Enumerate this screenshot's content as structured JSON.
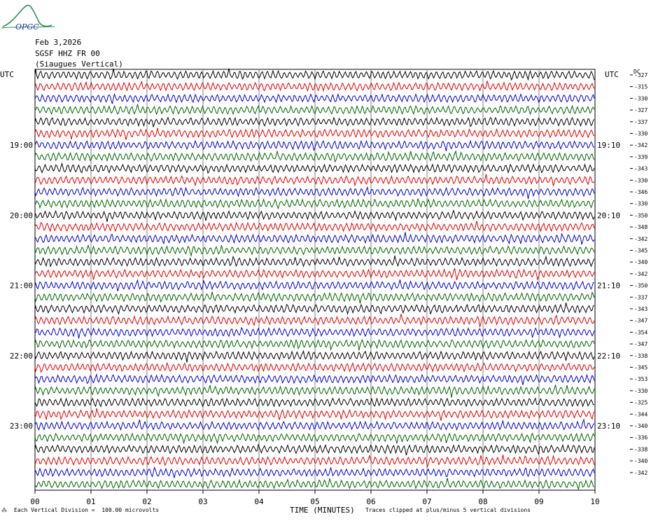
{
  "header": {
    "date": "Feb 3,2026",
    "station": "SGSF HHZ FR 00",
    "location": "(Siaugues Vertical)",
    "logo_text": "OPGC"
  },
  "utc_label_left": "UTC",
  "utc_label_right": "UTC",
  "dc_label": "DC",
  "footer": {
    "scale": "Each Vertical Division =  100.00 microvolts",
    "xlabel": "TIME (MINUTES)",
    "clip": "Traces clipped at plus/minus 5 vertical divisions"
  },
  "colors": {
    "trace_cycle": [
      "#000000",
      "#e00000",
      "#0000d0",
      "#006400"
    ],
    "grid": "#808080"
  },
  "chart_data": {
    "type": "line",
    "title": "Feb 3,2026 SGSF HHZ FR 00 (Siaugues Vertical)",
    "xlabel": "TIME (MINUTES)",
    "x_ticks": [
      "00",
      "01",
      "02",
      "03",
      "04",
      "05",
      "06",
      "07",
      "08",
      "09",
      "10"
    ],
    "xlim": [
      0,
      10
    ],
    "left_time_labels": [
      {
        "label": "19:00",
        "row": 6
      },
      {
        "label": "20:00",
        "row": 12
      },
      {
        "label": "21:00",
        "row": 18
      },
      {
        "label": "22:00",
        "row": 24
      },
      {
        "label": "23:00",
        "row": 30
      }
    ],
    "right_time_labels": [
      {
        "label": "19:10",
        "row": 6
      },
      {
        "label": "20:10",
        "row": 12
      },
      {
        "label": "21:10",
        "row": 18
      },
      {
        "label": "22:10",
        "row": 24
      },
      {
        "label": "23:10",
        "row": 30
      }
    ],
    "dc_offsets": [
      -327,
      -315,
      -330,
      -327,
      -337,
      -330,
      -342,
      -339,
      -343,
      -330,
      -346,
      -330,
      -350,
      -348,
      -342,
      -345,
      -340,
      -342,
      -350,
      -337,
      -343,
      -347,
      -354,
      -347,
      -338,
      -345,
      -353,
      -330,
      -325,
      -344,
      -340,
      -336,
      -338,
      -340,
      -342
    ],
    "rows": 36
  }
}
